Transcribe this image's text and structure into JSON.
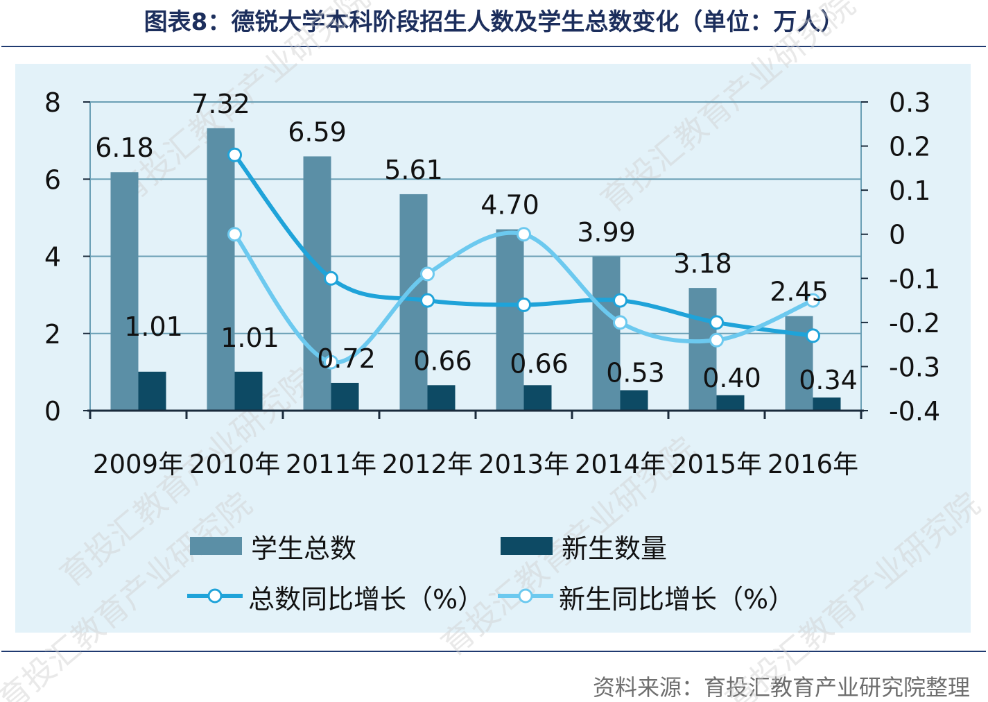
{
  "title": "图表8：德锐大学本科阶段招生人数及学生总数变化（单位：万人）",
  "source": "资料来源：育投汇教育产业研究院整理",
  "watermark": "育投汇教育产业研究院",
  "colors": {
    "total_bar": "#5b8fa6",
    "new_bar": "#0d4a64",
    "total_growth_line": "#1fa3d9",
    "new_growth_line": "#6cc9ef",
    "grid": "#6a9fb5",
    "panel": "#e3f2f9",
    "rule": "#1f3a70"
  },
  "chart_data": {
    "type": "bar",
    "title": "图表8：德锐大学本科阶段招生人数及学生总数变化（单位：万人）",
    "categories": [
      "2009年",
      "2010年",
      "2011年",
      "2012年",
      "2013年",
      "2014年",
      "2015年",
      "2016年"
    ],
    "y_left": {
      "ylim": [
        0,
        8
      ],
      "ticks": [
        "0",
        "2",
        "4",
        "6",
        "8"
      ]
    },
    "y_right": {
      "ylim": [
        -0.4,
        0.3
      ],
      "ticks": [
        "0.3",
        "0.2",
        "0.1",
        "0",
        "-0.1",
        "-0.2",
        "-0.3",
        "-0.4"
      ]
    },
    "grid": true,
    "legend_position": "bottom",
    "series": [
      {
        "name": "学生总数",
        "kind": "bar",
        "axis": "left",
        "values": [
          6.18,
          7.32,
          6.59,
          5.61,
          4.7,
          3.99,
          3.18,
          2.45
        ],
        "labels": [
          "6.18",
          "7.32",
          "6.59",
          "5.61",
          "4.70",
          "3.99",
          "3.18",
          "2.45"
        ]
      },
      {
        "name": "新生数量",
        "kind": "bar",
        "axis": "left",
        "values": [
          1.01,
          1.01,
          0.72,
          0.66,
          0.66,
          0.53,
          0.4,
          0.34
        ],
        "labels": [
          "1.01",
          "1.01",
          "0.72",
          "0.66",
          "0.66",
          "0.53",
          "0.40",
          "0.34"
        ]
      },
      {
        "name": "总数同比增长（%）",
        "kind": "line",
        "axis": "right",
        "values": [
          null,
          0.18,
          -0.1,
          -0.15,
          -0.16,
          -0.15,
          -0.2,
          -0.23
        ]
      },
      {
        "name": "新生同比增长（%）",
        "kind": "line",
        "axis": "right",
        "values": [
          null,
          0.0,
          -0.29,
          -0.09,
          0.0,
          -0.2,
          -0.24,
          -0.15
        ]
      }
    ]
  }
}
